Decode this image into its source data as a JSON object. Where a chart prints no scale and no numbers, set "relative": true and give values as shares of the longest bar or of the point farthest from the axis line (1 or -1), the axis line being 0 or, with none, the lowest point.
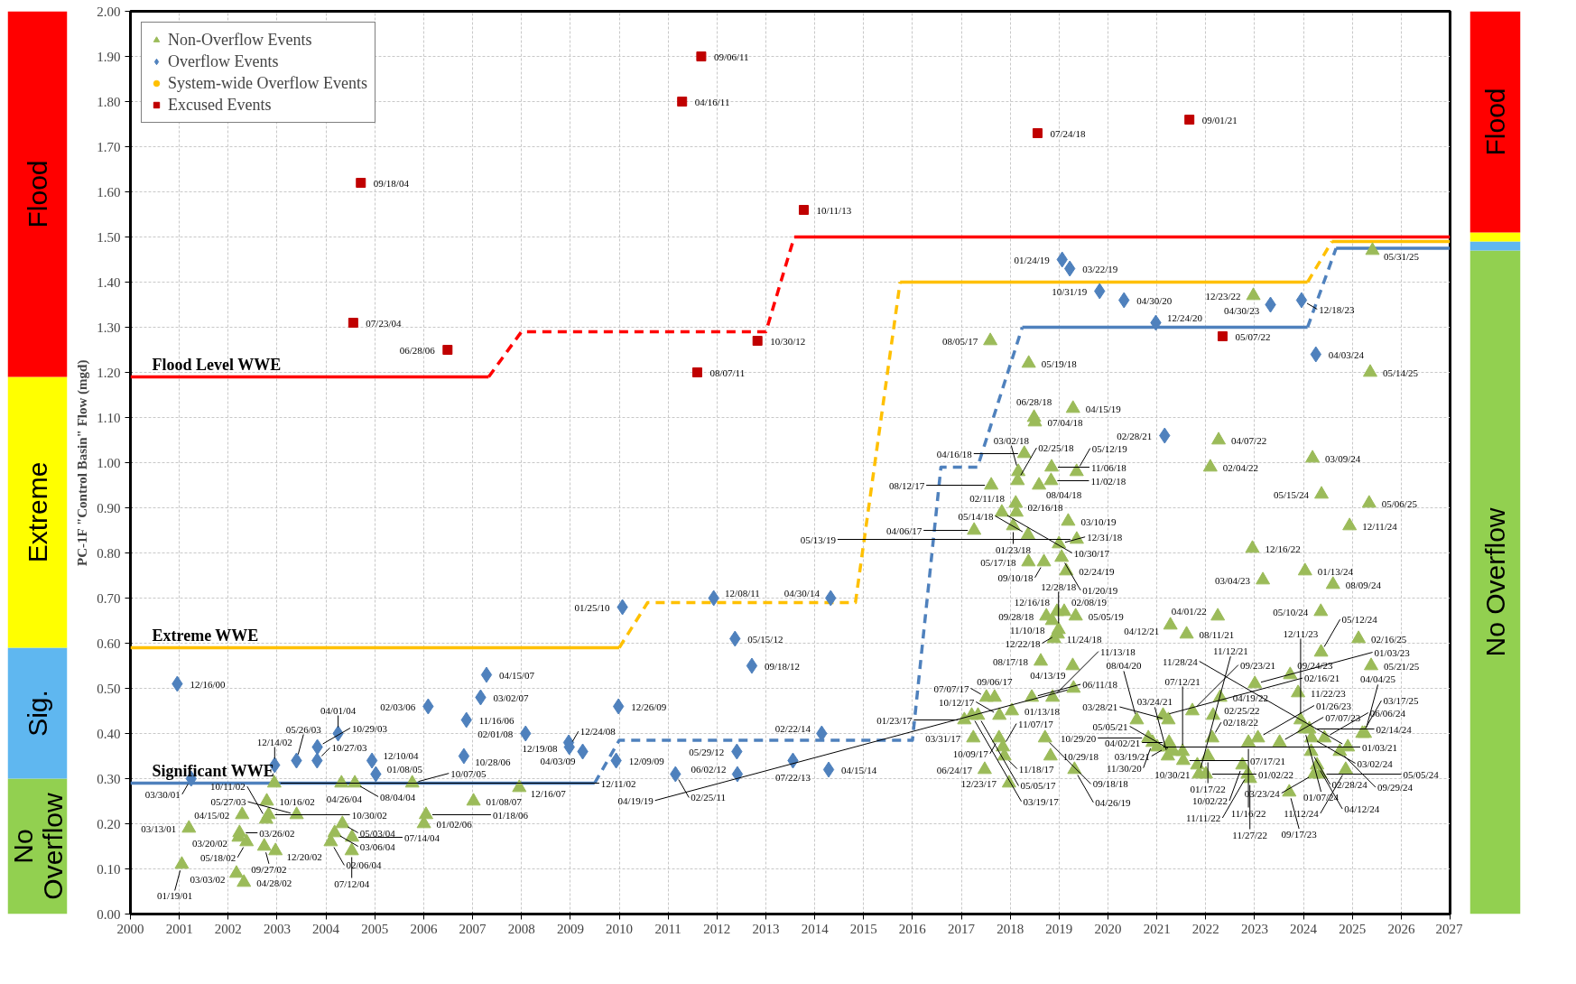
{
  "chart_data": [
    {
      "type": "bar",
      "stacked": true,
      "categories": [
        null
      ],
      "ylim": [
        0,
        2
      ],
      "tick_labels": false,
      "series": [
        {
          "name": "No Overflow",
          "color": "#92d050",
          "values": [
            0.3
          ]
        },
        {
          "name": "Sig.",
          "color": "#5fb7f0",
          "values": [
            0.29
          ]
        },
        {
          "name": "Extreme",
          "color": "#ffff00",
          "values": [
            0.6
          ]
        },
        {
          "name": "Flood",
          "color": "#ff0000",
          "values": [
            0.81
          ]
        }
      ]
    },
    {
      "type": "scatter",
      "ylabel": "PC-1F \"Control Basin\" Flow (mgd)",
      "xlim": [
        "2000-01-01",
        "2027-01-01"
      ],
      "xticks": [
        "2000",
        "2001",
        "2002",
        "2003",
        "2004",
        "2005",
        "2006",
        "2007",
        "2008",
        "2009",
        "2010",
        "2011",
        "2012",
        "2013",
        "2014",
        "2015",
        "2016",
        "2017",
        "2018",
        "2019",
        "2020",
        "2021",
        "2022",
        "2023",
        "2024",
        "2025",
        "2026",
        "2027"
      ],
      "ylim": [
        0,
        2
      ],
      "yticks": [
        {
          "value": 0,
          "label": "0.00"
        },
        {
          "value": 0.1,
          "label": "0.10"
        },
        {
          "value": 0.2,
          "label": "0.20"
        },
        {
          "value": 0.3,
          "label": "0.30"
        },
        {
          "value": 0.4,
          "label": "0.40"
        },
        {
          "value": 0.5,
          "label": "0.50"
        },
        {
          "value": 0.6,
          "label": "0.60"
        },
        {
          "value": 0.7,
          "label": "0.70"
        },
        {
          "value": 0.8,
          "label": "0.80"
        },
        {
          "value": 0.9,
          "label": "0.90"
        },
        {
          "value": 1,
          "label": "1.00"
        },
        {
          "value": 1.1,
          "label": "1.10"
        },
        {
          "value": 1.2,
          "label": "1.20"
        },
        {
          "value": 1.3,
          "label": "1.30"
        },
        {
          "value": 1.4,
          "label": "1.40"
        },
        {
          "value": 1.5,
          "label": "1.50"
        },
        {
          "value": 1.6,
          "label": "1.60"
        },
        {
          "value": 1.7,
          "label": "1.70"
        },
        {
          "value": 1.8,
          "label": "1.80"
        },
        {
          "value": 1.9,
          "label": "1.90"
        },
        {
          "value": 2,
          "label": "2.00"
        }
      ],
      "grid": true,
      "legend": "top left",
      "series": [
        {
          "type": "line",
          "name": "Flood Level WWE",
          "color": "#ff0000",
          "line_style": "solid",
          "x": [
            "2000-01-01",
            "2007-05-01"
          ],
          "values": [
            1.19,
            1.19
          ]
        },
        {
          "type": "line",
          "color": "#ff0000",
          "line_style": "dashed",
          "x": [
            "2007-05-01",
            "2008-01-01",
            "2013-01-01",
            "2013-08-01"
          ],
          "values": [
            1.19,
            1.29,
            1.29,
            1.5
          ]
        },
        {
          "type": "line",
          "color": "#ff0000",
          "line_style": "solid",
          "x": [
            "2013-08-01",
            "2027-01-01"
          ],
          "values": [
            1.5,
            1.5
          ]
        },
        {
          "type": "line",
          "name": "Extreme WWE",
          "color": "#ffc000",
          "line_style": "solid",
          "x": [
            "2000-01-01",
            "2010-01-01"
          ],
          "values": [
            0.59,
            0.59
          ]
        },
        {
          "type": "line",
          "color": "#ffc000",
          "line_style": "dashed",
          "x": [
            "2010-01-01",
            "2010-08-01",
            "2014-11-01",
            "2015-10-01"
          ],
          "values": [
            0.59,
            0.69,
            0.69,
            1.4
          ]
        },
        {
          "type": "line",
          "color": "#ffc000",
          "line_style": "solid",
          "x": [
            "2015-10-01",
            "2024-02-01"
          ],
          "values": [
            1.4,
            1.4
          ]
        },
        {
          "type": "line",
          "color": "#ffc000",
          "line_style": "dashed",
          "x": [
            "2024-02-01",
            "2024-08-01"
          ],
          "values": [
            1.4,
            1.49
          ]
        },
        {
          "type": "line",
          "color": "#ffc000",
          "line_style": "solid",
          "x": [
            "2024-08-01",
            "2027-01-01"
          ],
          "values": [
            1.49,
            1.49
          ]
        },
        {
          "type": "line",
          "name": "Significant WWE",
          "color": "#4f81bd",
          "line_style": "solid",
          "x": [
            "2000-01-01",
            "2009-07-01"
          ],
          "values": [
            0.29,
            0.29
          ]
        },
        {
          "type": "line",
          "color": "#4f81bd",
          "line_style": "dashed",
          "x": [
            "2009-07-01",
            "2010-01-01",
            "2016-01-01",
            "2016-08-01",
            "2017-05-01",
            "2018-04-01"
          ],
          "values": [
            0.29,
            0.385,
            0.385,
            0.99,
            0.99,
            1.3
          ]
        },
        {
          "type": "line",
          "color": "#4f81bd",
          "line_style": "solid",
          "x": [
            "2018-04-01",
            "2024-02-01"
          ],
          "values": [
            1.3,
            1.3
          ]
        },
        {
          "type": "line",
          "color": "#4f81bd",
          "line_style": "dashed",
          "x": [
            "2024-02-01",
            "2024-09-01"
          ],
          "values": [
            1.3,
            1.475
          ]
        },
        {
          "type": "line",
          "color": "#4f81bd",
          "line_style": "solid",
          "x": [
            "2024-09-01",
            "2027-01-01"
          ],
          "values": [
            1.475,
            1.475
          ]
        },
        {
          "type": "scatter",
          "name": "Non-Overflow Events",
          "color": "#9bbb59",
          "marker": "triangle",
          "x": [
            "2001-01-19",
            "2001-03-13",
            "2002-03-03",
            "2002-03-20",
            "2002-03-26",
            "2002-04-15",
            "2002-04-28",
            "2002-05-18",
            "2002-09-27",
            "2002-10-11",
            "2002-10-16",
            "2002-10-30",
            "2002-12-11",
            "2002-12-20",
            "2003-05-27",
            "2004-02-06",
            "2004-03-06",
            "2004-04-26",
            "2004-05-03",
            "2004-07-12",
            "2004-07-14",
            "2004-08-04",
            "2005-10-07",
            "2006-01-02",
            "2006-01-18",
            "2007-01-08",
            "2007-12-16",
            "2017-01-23",
            "2017-03-19",
            "2017-03-31",
            "2017-04-06",
            "2017-05-05",
            "2017-06-24",
            "2017-07-07",
            "2017-08-05",
            "2017-08-12",
            "2017-09-06",
            "2017-10-09",
            "2017-10-12",
            "2017-10-30",
            "2017-11-07",
            "2017-11-18",
            "2017-12-23",
            "2018-01-13",
            "2018-01-23",
            "2018-02-11",
            "2018-02-16",
            "2018-02-25",
            "2018-03-02",
            "2018-04-16",
            "2018-05-14",
            "2018-05-17",
            "2018-05-19",
            "2018-06-11",
            "2018-06-28",
            "2018-07-04",
            "2018-08-04",
            "2018-08-17",
            "2018-09-10",
            "2018-09-18",
            "2018-09-28",
            "2018-10-29",
            "2018-11-02",
            "2018-11-06",
            "2018-11-10",
            "2018-11-13",
            "2018-11-24",
            "2018-12-16",
            "2018-12-22",
            "2018-12-28",
            "2018-12-31",
            "2019-01-20",
            "2019-02-08",
            "2019-02-24",
            "2019-03-10",
            "2019-04-13",
            "2019-04-15",
            "2019-04-19",
            "2019-04-26",
            "2019-05-05",
            "2019-05-12",
            "2019-05-13",
            "2020-08-04",
            "2020-10-29",
            "2020-11-30",
            "2021-01-03",
            "2021-02-16",
            "2021-03-19",
            "2021-03-24",
            "2021-03-28",
            "2021-04-02",
            "2021-04-12",
            "2021-05-05",
            "2021-07-12",
            "2021-07-17",
            "2021-08-11",
            "2021-09-23",
            "2021-10-30",
            "2021-11-12",
            "2022-01-02",
            "2022-01-17",
            "2022-02-04",
            "2022-02-18",
            "2022-02-25",
            "2022-04-01",
            "2022-04-07",
            "2022-04-19",
            "2022-10-02",
            "2022-11-11",
            "2022-11-16",
            "2022-11-27",
            "2022-12-16",
            "2022-12-23",
            "2023-01-03",
            "2023-01-26",
            "2023-03-04",
            "2023-07-07",
            "2023-09-17",
            "2023-09-24",
            "2023-11-22",
            "2023-12-11",
            "2024-01-07",
            "2024-01-13",
            "2024-02-14",
            "2024-02-28",
            "2024-03-02",
            "2024-03-09",
            "2024-03-23",
            "2024-04-12",
            "2024-05-05",
            "2024-05-10",
            "2024-05-12",
            "2024-05-15",
            "2024-06-06",
            "2024-08-09",
            "2024-09-29",
            "2024-11-12",
            "2024-11-28",
            "2024-12-11",
            "2025-02-16",
            "2025-03-17",
            "2025-04-04",
            "2025-05-06",
            "2025-05-14",
            "2025-05-21",
            "2025-05-31"
          ],
          "values": [
            0.11,
            0.19,
            0.09,
            0.17,
            0.18,
            0.22,
            0.07,
            0.16,
            0.15,
            0.21,
            0.25,
            0.22,
            0.29,
            0.14,
            0.22,
            0.16,
            0.18,
            0.29,
            0.2,
            0.14,
            0.17,
            0.29,
            0.29,
            0.2,
            0.22,
            0.25,
            0.28,
            0.43,
            0.44,
            0.39,
            0.85,
            0.44,
            0.32,
            0.48,
            1.27,
            0.95,
            0.48,
            0.39,
            0.44,
            0.89,
            0.37,
            0.35,
            0.29,
            0.45,
            0.86,
            0.91,
            0.89,
            0.96,
            0.98,
            1.02,
            0.84,
            0.78,
            1.22,
            0.48,
            1.1,
            1.09,
            0.95,
            0.56,
            0.78,
            0.39,
            0.66,
            0.35,
            0.96,
            0.99,
            0.65,
            0.48,
            0.61,
            0.67,
            0.62,
            0.63,
            0.82,
            0.79,
            0.67,
            0.76,
            0.87,
            0.55,
            1.12,
            0.5,
            0.32,
            0.66,
            0.98,
            0.83,
            0.43,
            0.39,
            0.38,
            0.37,
            0.44,
            0.37,
            0.35,
            0.43,
            0.38,
            0.64,
            0.36,
            0.36,
            0.34,
            0.62,
            0.45,
            0.33,
            0.31,
            0.31,
            0.35,
            0.99,
            0.39,
            0.44,
            0.66,
            1.05,
            0.48,
            0.33,
            0.31,
            0.38,
            0.3,
            0.81,
            1.37,
            0.51,
            0.39,
            0.74,
            0.38,
            0.27,
            0.53,
            0.49,
            0.43,
            0.41,
            0.76,
            0.41,
            0.36,
            0.39,
            1.01,
            0.31,
            0.33,
            0.31,
            0.67,
            0.58,
            0.93,
            0.39,
            0.73,
            0.36,
            0.32,
            0.37,
            0.86,
            0.61,
            0.4,
            0.4,
            0.91,
            1.2,
            0.55,
            1.47
          ],
          "value_labels": [
            "01/19/01",
            "03/13/01",
            "03/03/02",
            "03/20/02",
            "03/26/02",
            "04/15/02",
            "04/28/02",
            "05/18/02",
            "09/27/02",
            "10/11/02",
            "10/16/02",
            "10/30/02",
            "12/11/02",
            "12/20/02",
            "05/27/03",
            "02/06/04",
            "03/06/04",
            "04/26/04",
            "05/03/04",
            "07/12/04",
            "07/14/04",
            "08/04/04",
            "10/07/05",
            "01/02/06",
            "01/18/06",
            "01/08/07",
            "12/16/07",
            "01/23/17",
            "03/19/17",
            "03/31/17",
            "04/06/17",
            "05/05/17",
            "06/24/17",
            "07/07/17",
            "08/05/17",
            "08/12/17",
            "09/06/17",
            "10/09/17",
            "10/12/17",
            "10/30/17",
            "11/07/17",
            "11/18/17",
            "12/23/17",
            "01/13/18",
            "01/23/18",
            "02/11/18",
            "02/16/18",
            "02/25/18",
            "03/02/18",
            "04/16/18",
            "05/14/18",
            "05/17/18",
            "05/19/18",
            "06/11/18",
            "06/28/18",
            "07/04/18",
            "08/04/18",
            "08/17/18",
            "09/10/18",
            "09/18/18",
            "09/28/18",
            "10/29/18",
            "11/02/18",
            "11/06/18",
            "11/10/18",
            "11/13/18",
            "11/24/18",
            "12/16/18",
            "12/22/18",
            "12/28/18",
            "12/31/18",
            "01/20/19",
            "02/08/19",
            "02/24/19",
            "03/10/19",
            "04/13/19",
            "04/15/19",
            "04/19/19",
            "04/26/19",
            "05/05/19",
            "05/12/19",
            "05/13/19",
            "08/04/20",
            "10/29/20",
            "11/30/20",
            "01/03/21",
            "02/16/21",
            "03/19/21",
            "03/24/21",
            "03/28/21",
            "04/02/21",
            "04/12/21",
            "05/05/21",
            "07/12/21",
            "07/17/21",
            "08/11/21",
            "09/23/21",
            "10/30/21",
            "11/12/21",
            "01/02/22",
            "01/17/22",
            "02/04/22",
            "02/18/22",
            "02/25/22",
            "04/01/22",
            "04/07/22",
            "04/19/22",
            "10/02/22",
            "11/11/22",
            "11/16/22",
            "11/27/22",
            "12/16/22",
            "12/23/22",
            "01/03/23",
            "01/26/23",
            "03/04/23",
            "07/07/23",
            "09/17/23",
            "09/24/23",
            "11/22/23",
            "12/11/23",
            "01/07/24",
            "01/13/24",
            "02/14/24",
            "02/28/24",
            "03/02/24",
            "03/09/24",
            "03/23/24",
            "04/12/24",
            "05/05/24",
            "05/10/24",
            "05/12/24",
            "05/15/24",
            "06/06/24",
            "08/09/24",
            "09/29/24",
            "11/12/24",
            "11/28/24",
            "12/11/24",
            "02/16/25",
            "03/17/25",
            "04/04/25",
            "05/06/25",
            "05/14/25",
            "05/21/25",
            "05/31/25"
          ]
        },
        {
          "type": "scatter",
          "name": "Overflow Events",
          "color": "#4f81bd",
          "marker": "diamond",
          "x": [
            "2000-12-16",
            "2001-03-30",
            "2002-12-14",
            "2003-05-26",
            "2003-10-27",
            "2003-10-29",
            "2004-04-01",
            "2004-12-10",
            "2005-01-08",
            "2006-02-03",
            "2006-10-28",
            "2006-11-16",
            "2007-03-02",
            "2007-04-15",
            "2008-02-01",
            "2008-12-19",
            "2008-12-24",
            "2009-04-03",
            "2009-12-09",
            "2009-12-26",
            "2010-01-25",
            "2011-02-25",
            "2011-12-08",
            "2012-05-15",
            "2012-06-02",
            "2012-05-29",
            "2012-09-18",
            "2013-07-22",
            "2014-02-22",
            "2014-04-30",
            "2014-04-15",
            "2019-01-24",
            "2019-03-22",
            "2019-10-31",
            "2020-04-30",
            "2020-12-24",
            "2021-02-28",
            "2023-04-30",
            "2023-12-18",
            "2024-04-03"
          ],
          "values": [
            0.51,
            0.3,
            0.33,
            0.34,
            0.34,
            0.37,
            0.4,
            0.34,
            0.31,
            0.46,
            0.35,
            0.43,
            0.48,
            0.53,
            0.4,
            0.38,
            0.37,
            0.36,
            0.34,
            0.46,
            0.68,
            0.31,
            0.7,
            0.61,
            0.31,
            0.36,
            0.55,
            0.34,
            0.4,
            0.7,
            0.32,
            1.45,
            1.43,
            1.38,
            1.36,
            1.31,
            1.06,
            1.35,
            1.36,
            1.24
          ],
          "value_labels": [
            "12/16/00",
            "03/30/01",
            "12/14/02",
            "05/26/03",
            "10/27/03",
            "10/29/03",
            "04/01/04",
            "12/10/04",
            "01/08/05",
            "02/03/06",
            "10/28/06",
            "11/16/06",
            "03/02/07",
            "04/15/07",
            "02/01/08",
            "12/19/08",
            "12/24/08",
            "04/03/09",
            "12/09/09",
            "12/26/09",
            "01/25/10",
            "02/25/11",
            "12/08/11",
            "05/15/12",
            "06/02/12",
            "05/29/12",
            "09/18/12",
            "07/22/13",
            "02/22/14",
            "04/30/14",
            "04/15/14",
            "01/24/19",
            "03/22/19",
            "10/31/19",
            "04/30/20",
            "12/24/20",
            "02/28/21",
            "04/30/23",
            "12/18/23",
            "04/03/24"
          ]
        },
        {
          "type": "scatter",
          "name": "System-wide Overflow Events",
          "color": "#ffc000",
          "marker": "circle"
        },
        {
          "type": "scatter",
          "name": "Excused Events",
          "color": "#c00000",
          "marker": "square",
          "x": [
            "2004-07-23",
            "2004-09-18",
            "2006-06-28",
            "2011-04-16",
            "2011-08-07",
            "2011-09-06",
            "2012-10-30",
            "2013-10-11",
            "2018-07-24",
            "2021-09-01",
            "2022-05-07"
          ],
          "values": [
            1.31,
            1.62,
            1.25,
            1.8,
            1.2,
            1.9,
            1.27,
            1.56,
            1.73,
            1.76,
            1.28
          ],
          "value_labels": [
            "07/23/04",
            "09/18/04",
            "06/28/06",
            "04/16/11",
            "08/07/11",
            "09/06/11",
            "10/30/12",
            "10/11/13",
            "07/24/18",
            "09/01/21",
            "05/07/22"
          ]
        }
      ]
    },
    {
      "type": "bar",
      "stacked": true,
      "relative": true,
      "categories": [
        null
      ],
      "tick_labels": false,
      "series": [
        {
          "name": "No Overflow",
          "color": "#92d050",
          "values": [
            0.735
          ]
        },
        {
          "color": "#5fb7f0",
          "values": [
            0.01
          ]
        },
        {
          "color": "#ffff00",
          "values": [
            0.01
          ]
        },
        {
          "name": "Flood",
          "color": "#ff0000",
          "values": [
            0.245
          ]
        }
      ]
    }
  ]
}
